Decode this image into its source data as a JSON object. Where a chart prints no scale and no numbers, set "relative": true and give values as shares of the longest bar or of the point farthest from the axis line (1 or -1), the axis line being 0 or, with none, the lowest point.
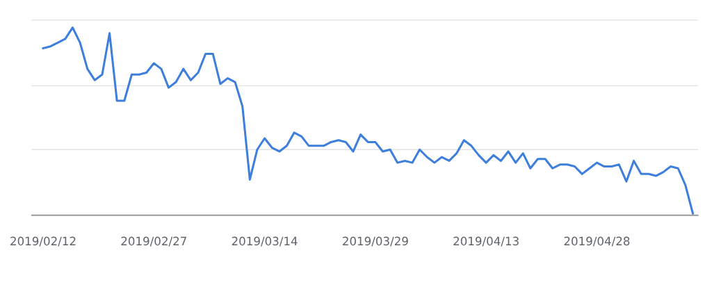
{
  "chart_data": {
    "type": "line",
    "relative": true,
    "ref_lines": [
      {
        "axis": "y",
        "value": 0.35,
        "color": "#e3e3e3"
      },
      {
        "axis": "y",
        "value": 0.69,
        "color": "#e3e3e3"
      },
      {
        "axis": "y",
        "value": 1.04,
        "color": "#e3e3e3"
      }
    ],
    "legend": false,
    "marker": "none",
    "line_style": "solid",
    "x": [
      "2019-02-12",
      "2019-02-13",
      "2019-02-14",
      "2019-02-15",
      "2019-02-16",
      "2019-02-17",
      "2019-02-18",
      "2019-02-19",
      "2019-02-20",
      "2019-02-21",
      "2019-02-22",
      "2019-02-23",
      "2019-02-24",
      "2019-02-25",
      "2019-02-26",
      "2019-02-27",
      "2019-02-28",
      "2019-03-01",
      "2019-03-02",
      "2019-03-03",
      "2019-03-04",
      "2019-03-05",
      "2019-03-06",
      "2019-03-07",
      "2019-03-08",
      "2019-03-09",
      "2019-03-10",
      "2019-03-11",
      "2019-03-12",
      "2019-03-13",
      "2019-03-14",
      "2019-03-15",
      "2019-03-16",
      "2019-03-17",
      "2019-03-18",
      "2019-03-19",
      "2019-03-20",
      "2019-03-21",
      "2019-03-22",
      "2019-03-23",
      "2019-03-24",
      "2019-03-25",
      "2019-03-26",
      "2019-03-27",
      "2019-03-28",
      "2019-03-29",
      "2019-03-30",
      "2019-03-31",
      "2019-04-01",
      "2019-04-02",
      "2019-04-03",
      "2019-04-04",
      "2019-04-05",
      "2019-04-06",
      "2019-04-07",
      "2019-04-08",
      "2019-04-09",
      "2019-04-10",
      "2019-04-11",
      "2019-04-12",
      "2019-04-13",
      "2019-04-14",
      "2019-04-15",
      "2019-04-16",
      "2019-04-17",
      "2019-04-18",
      "2019-04-19",
      "2019-04-20",
      "2019-04-21",
      "2019-04-22",
      "2019-04-23",
      "2019-04-24",
      "2019-04-25",
      "2019-04-26",
      "2019-04-27",
      "2019-04-28",
      "2019-04-29",
      "2019-04-30",
      "2019-05-01",
      "2019-05-02",
      "2019-05-03",
      "2019-05-04",
      "2019-05-05",
      "2019-05-06",
      "2019-05-07",
      "2019-05-08",
      "2019-05-09",
      "2019-05-10",
      "2019-05-11"
    ],
    "series": [
      {
        "color": "#3f7fdc",
        "values": [
          0.89,
          0.9,
          0.92,
          0.94,
          1.0,
          0.92,
          0.78,
          0.72,
          0.75,
          0.97,
          0.61,
          0.61,
          0.75,
          0.75,
          0.76,
          0.81,
          0.78,
          0.68,
          0.71,
          0.78,
          0.72,
          0.76,
          0.86,
          0.86,
          0.7,
          0.73,
          0.71,
          0.58,
          0.19,
          0.35,
          0.41,
          0.36,
          0.34,
          0.37,
          0.44,
          0.42,
          0.37,
          0.37,
          0.37,
          0.39,
          0.4,
          0.39,
          0.34,
          0.43,
          0.39,
          0.39,
          0.34,
          0.35,
          0.28,
          0.29,
          0.28,
          0.35,
          0.31,
          0.28,
          0.31,
          0.29,
          0.33,
          0.4,
          0.37,
          0.32,
          0.28,
          0.32,
          0.29,
          0.34,
          0.28,
          0.33,
          0.25,
          0.3,
          0.3,
          0.25,
          0.27,
          0.27,
          0.26,
          0.22,
          0.25,
          0.28,
          0.26,
          0.26,
          0.27,
          0.18,
          0.29,
          0.22,
          0.22,
          0.21,
          0.23,
          0.26,
          0.25,
          0.16,
          0.01
        ]
      }
    ],
    "xlim": [
      "2019-02-10T12:00",
      "2019-05-11T16:00"
    ],
    "xticks": [
      {
        "value": "2019-02-12",
        "label": "2019/02/12"
      },
      {
        "value": "2019-02-27",
        "label": "2019/02/27"
      },
      {
        "value": "2019-03-14",
        "label": "2019/03/14"
      },
      {
        "value": "2019-03-29",
        "label": "2019/03/29"
      },
      {
        "value": "2019-04-13",
        "label": "2019/04/13"
      },
      {
        "value": "2019-04-28",
        "label": "2019/04/28"
      }
    ]
  }
}
